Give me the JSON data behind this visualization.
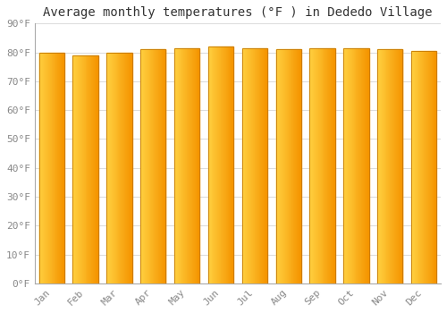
{
  "title": "Average monthly temperatures (°F ) in Dededo Village",
  "months": [
    "Jan",
    "Feb",
    "Mar",
    "Apr",
    "May",
    "Jun",
    "Jul",
    "Aug",
    "Sep",
    "Oct",
    "Nov",
    "Dec"
  ],
  "values": [
    80,
    79,
    80,
    81,
    81.5,
    82,
    81.5,
    81,
    81.5,
    81.5,
    81,
    80.5
  ],
  "bar_color_left": "#FFD040",
  "bar_color_right": "#F59500",
  "bar_edge_color": "#C47800",
  "ylim": [
    0,
    90
  ],
  "yticks": [
    0,
    10,
    20,
    30,
    40,
    50,
    60,
    70,
    80,
    90
  ],
  "ytick_labels": [
    "0°F",
    "10°F",
    "20°F",
    "30°F",
    "40°F",
    "50°F",
    "60°F",
    "70°F",
    "80°F",
    "90°F"
  ],
  "background_color": "#ffffff",
  "plot_bg_color": "#ffffff",
  "grid_color": "#dddddd",
  "title_fontsize": 10,
  "tick_fontsize": 8,
  "tick_color": "#888888",
  "font_family": "monospace",
  "bar_width": 0.75,
  "n_gradient_steps": 30
}
